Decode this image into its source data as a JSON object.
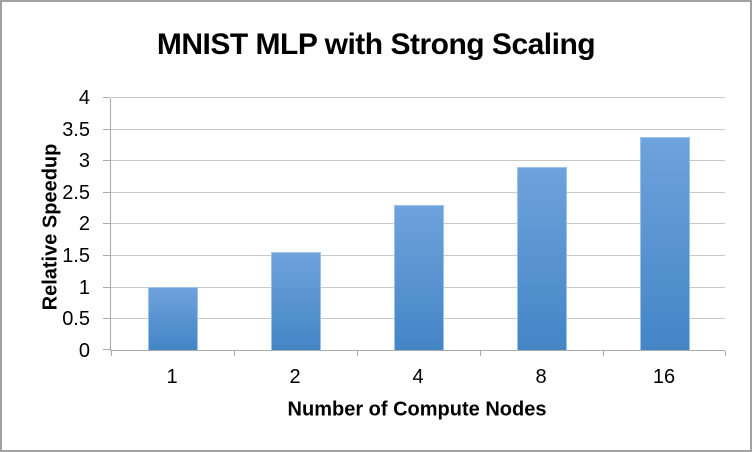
{
  "window": {
    "background": "#ffffff",
    "border_color": "#a2a2a2"
  },
  "chart_data": {
    "type": "bar",
    "title": "MNIST MLP with Strong Scaling",
    "xlabel": "Number of Compute Nodes",
    "ylabel": "Relative Speedup",
    "categories": [
      "1",
      "2",
      "4",
      "8",
      "16"
    ],
    "series": [
      {
        "name": "Relative Speedup",
        "values": [
          1.0,
          1.55,
          2.3,
          2.9,
          3.37
        ]
      }
    ],
    "ylim": [
      0,
      4
    ],
    "yticks": [
      0,
      0.5,
      1,
      1.5,
      2,
      2.5,
      3,
      3.5,
      4
    ],
    "grid": true,
    "legend_position": "none",
    "colors": {
      "bar_gradient_top": "#6ea3dc",
      "bar_gradient_bottom": "#4485c6",
      "bar_border": "#9ec1e7",
      "gridline": "#c9c9c9",
      "axis": "#ababab",
      "text": "#000000"
    }
  }
}
